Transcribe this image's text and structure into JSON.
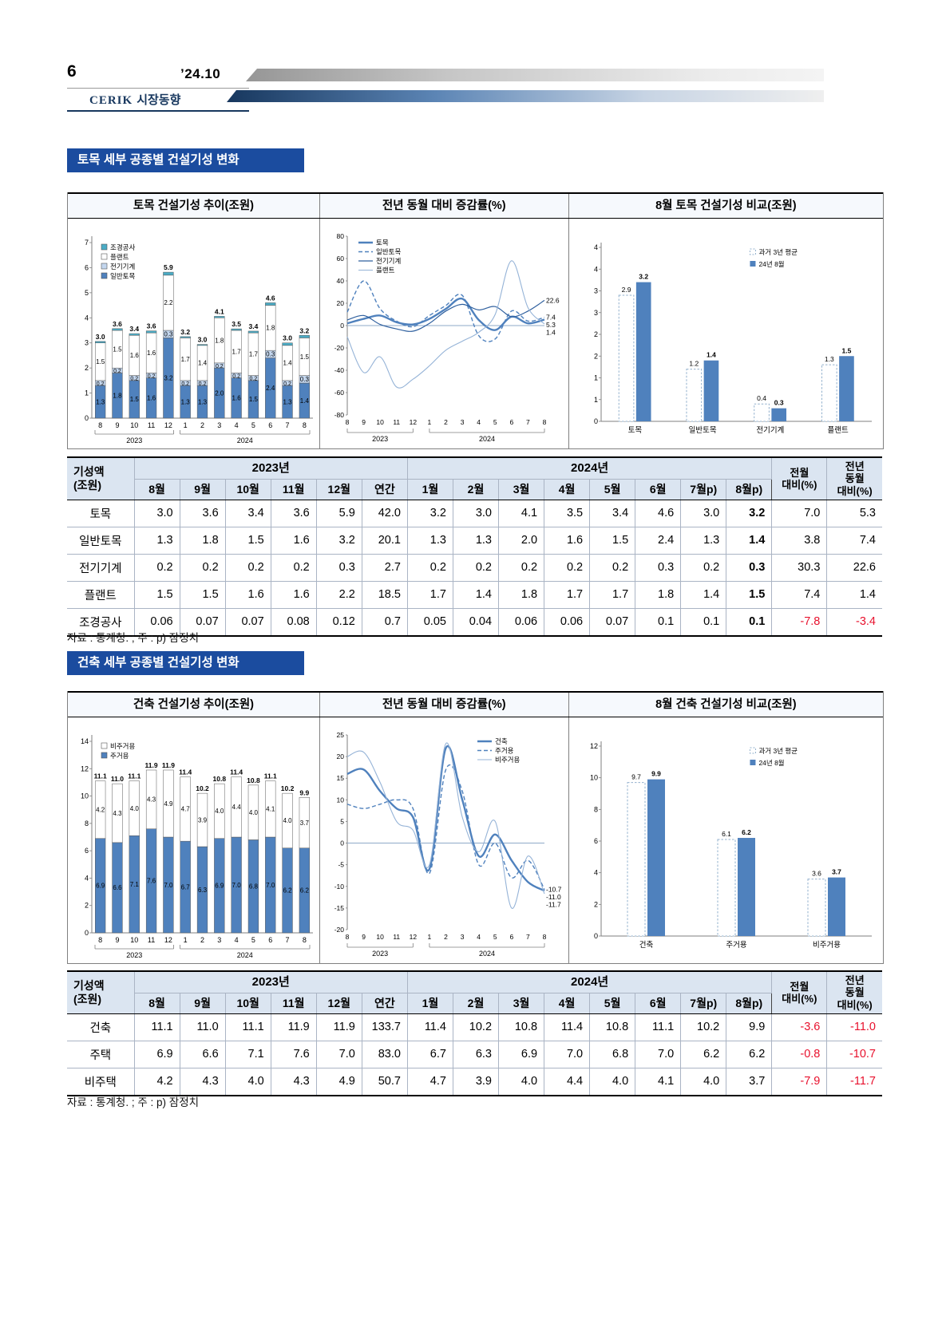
{
  "header": {
    "page_number": "6",
    "issue": "’24.10",
    "brand": "CERIK",
    "brand_label": "시장동향"
  },
  "note": "자료 : 통계청. ; 주 : p) 잠정치",
  "colors": {
    "accent_blue": "#4f81bd",
    "light_blue": "#c3d6ee",
    "teal": "#4bacc6",
    "navy": "#17375e",
    "section_title_bg": "#1b4c9f",
    "table_header_bg": "#dbe5f1",
    "negative_red": "#e8112d"
  },
  "sections": [
    {
      "title": "토목 세부 공종별 건설기성 변화",
      "panel_titles": [
        "토목 건설기성 추이(조원)",
        "전년 동월 대비 증감률(%)",
        "8월 토목 건설기성 비교(조원)"
      ]
    },
    {
      "title": "건축 세부 공종별 건설기성 변화",
      "panel_titles": [
        "건축 건설기성 추이(조원)",
        "전년 동월 대비 증감률(%)",
        "8월 건축 건설기성 비교(조원)"
      ]
    }
  ],
  "tables": [
    {
      "corner_lines": [
        "기성액",
        "(조원)"
      ],
      "year_headers": [
        "2023년",
        "2024년"
      ],
      "months_2023": [
        "8월",
        "9월",
        "10월",
        "11월",
        "12월",
        "연간"
      ],
      "months_2024": [
        "1월",
        "2월",
        "3월",
        "4월",
        "5월",
        "6월",
        "7월p)",
        "8월p)"
      ],
      "mom_lines": [
        "전월",
        "대비(%)"
      ],
      "yoy_lines": [
        "전년",
        "동월",
        "대비(%)"
      ],
      "bold_last_month": true,
      "rows": [
        {
          "label": "토목",
          "sub": false,
          "values": [
            "3.0",
            "3.6",
            "3.4",
            "3.6",
            "5.9",
            "42.0",
            "3.2",
            "3.0",
            "4.1",
            "3.5",
            "3.4",
            "4.6",
            "3.0",
            "3.2"
          ],
          "mom": "7.0",
          "yoy": "5.3"
        },
        {
          "label": "일반토목",
          "sub": true,
          "values": [
            "1.3",
            "1.8",
            "1.5",
            "1.6",
            "3.2",
            "20.1",
            "1.3",
            "1.3",
            "2.0",
            "1.6",
            "1.5",
            "2.4",
            "1.3",
            "1.4"
          ],
          "mom": "3.8",
          "yoy": "7.4"
        },
        {
          "label": "전기기계",
          "sub": true,
          "values": [
            "0.2",
            "0.2",
            "0.2",
            "0.2",
            "0.3",
            "2.7",
            "0.2",
            "0.2",
            "0.2",
            "0.2",
            "0.2",
            "0.3",
            "0.2",
            "0.3"
          ],
          "mom": "30.3",
          "yoy": "22.6"
        },
        {
          "label": "플랜트",
          "sub": true,
          "values": [
            "1.5",
            "1.5",
            "1.6",
            "1.6",
            "2.2",
            "18.5",
            "1.7",
            "1.4",
            "1.8",
            "1.7",
            "1.7",
            "1.8",
            "1.4",
            "1.5"
          ],
          "mom": "7.4",
          "yoy": "1.4"
        },
        {
          "label": "조경공사",
          "sub": true,
          "values": [
            "0.06",
            "0.07",
            "0.07",
            "0.08",
            "0.12",
            "0.7",
            "0.05",
            "0.04",
            "0.06",
            "0.06",
            "0.07",
            "0.1",
            "0.1",
            "0.1"
          ],
          "mom": "-7.8",
          "yoy": "-3.4"
        }
      ]
    },
    {
      "corner_lines": [
        "기성액",
        "(조원)"
      ],
      "year_headers": [
        "2023년",
        "2024년"
      ],
      "months_2023": [
        "8월",
        "9월",
        "10월",
        "11월",
        "12월",
        "연간"
      ],
      "months_2024": [
        "1월",
        "2월",
        "3월",
        "4월",
        "5월",
        "6월",
        "7월p)",
        "8월p)"
      ],
      "mom_lines": [
        "전월",
        "대비(%)"
      ],
      "yoy_lines": [
        "전년",
        "동월",
        "대비(%)"
      ],
      "bold_last_month": false,
      "rows": [
        {
          "label": "건축",
          "sub": false,
          "values": [
            "11.1",
            "11.0",
            "11.1",
            "11.9",
            "11.9",
            "133.7",
            "11.4",
            "10.2",
            "10.8",
            "11.4",
            "10.8",
            "11.1",
            "10.2",
            "9.9"
          ],
          "mom": "-3.6",
          "yoy": "-11.0"
        },
        {
          "label": "주택",
          "sub": true,
          "values": [
            "6.9",
            "6.6",
            "7.1",
            "7.6",
            "7.0",
            "83.0",
            "6.7",
            "6.3",
            "6.9",
            "7.0",
            "6.8",
            "7.0",
            "6.2",
            "6.2"
          ],
          "mom": "-0.8",
          "yoy": "-10.7"
        },
        {
          "label": "비주택",
          "sub": true,
          "values": [
            "4.2",
            "4.3",
            "4.0",
            "4.3",
            "4.9",
            "50.7",
            "4.7",
            "3.9",
            "4.0",
            "4.4",
            "4.0",
            "4.1",
            "4.0",
            "3.7"
          ],
          "mom": "-7.9",
          "yoy": "-11.7"
        }
      ]
    }
  ],
  "chart_data": [
    {
      "id": "civil-trend",
      "type": "bar",
      "subtype": "stacked",
      "title": "토목 건설기성 추이(조원)",
      "categories": [
        "8",
        "9",
        "10",
        "11",
        "12",
        "1",
        "2",
        "3",
        "4",
        "5",
        "6",
        "7",
        "8"
      ],
      "year_groups": [
        {
          "label": "2023",
          "span": 5
        },
        {
          "label": "2024",
          "span": 8
        }
      ],
      "ylim": [
        0,
        7
      ],
      "ytick": 1,
      "series": [
        {
          "name": "일반토목",
          "color": "#4f81bd",
          "labels": true,
          "values": [
            1.3,
            1.8,
            1.5,
            1.6,
            3.2,
            1.3,
            1.3,
            2.0,
            1.6,
            1.5,
            2.4,
            1.3,
            1.4
          ]
        },
        {
          "name": "전기기계",
          "color": "#c3d6ee",
          "labels": true,
          "values": [
            0.2,
            0.2,
            0.2,
            0.2,
            0.3,
            0.2,
            0.2,
            0.2,
            0.2,
            0.2,
            0.3,
            0.2,
            0.3
          ]
        },
        {
          "name": "플랜트",
          "color": "#ffffff",
          "labels": true,
          "values": [
            1.5,
            1.5,
            1.6,
            1.6,
            2.2,
            1.7,
            1.4,
            1.8,
            1.7,
            1.7,
            1.8,
            1.4,
            1.5
          ]
        },
        {
          "name": "조경공사",
          "color": "#4bacc6",
          "labels": false,
          "values": [
            0.06,
            0.07,
            0.07,
            0.08,
            0.12,
            0.05,
            0.04,
            0.06,
            0.06,
            0.07,
            0.1,
            0.1,
            0.1
          ]
        }
      ],
      "totals": [
        3.0,
        3.6,
        3.4,
        3.6,
        5.9,
        3.2,
        3.0,
        4.1,
        3.5,
        3.4,
        4.6,
        3.0,
        3.2
      ],
      "legend": [
        "조경공사",
        "플랜트",
        "전기기계",
        "일반토목"
      ]
    },
    {
      "id": "civil-yoy",
      "type": "line",
      "title": "전년 동월 대비 증감률(%)",
      "x_labels": [
        "8",
        "9",
        "10",
        "11",
        "12",
        "1",
        "2",
        "3",
        "4",
        "5",
        "6",
        "7",
        "8"
      ],
      "year_groups": [
        {
          "label": "2023",
          "span": 5
        },
        {
          "label": "2024",
          "span": 8
        }
      ],
      "ylim": [
        -80,
        80
      ],
      "ytick": 20,
      "legend_pos": "tl",
      "series": [
        {
          "name": "토목",
          "color": "#4f81bd",
          "width": 2.4,
          "end_label": "5.3",
          "values": [
            2,
            6,
            9,
            3,
            1,
            6,
            15,
            24,
            5,
            -4,
            8,
            2,
            5.3
          ]
        },
        {
          "name": "일반토목",
          "color": "#4f81bd",
          "width": 1.4,
          "dash": "5,3",
          "end_label": "7.4",
          "values": [
            12,
            40,
            15,
            4,
            -1,
            9,
            18,
            27,
            -9,
            -12,
            13,
            4,
            7.4
          ]
        },
        {
          "name": "전기기계",
          "color": "#2e5f9e",
          "width": 1.2,
          "end_label": "22.6",
          "values": [
            5,
            9,
            1,
            -3,
            -5,
            2,
            13,
            19,
            14,
            17,
            8,
            13,
            22.6
          ]
        },
        {
          "name": "플랜트",
          "color": "#95b3d7",
          "width": 1.1,
          "end_label": "1.4",
          "values": [
            -10,
            -42,
            -28,
            -55,
            -48,
            -36,
            -22,
            -14,
            -6,
            10,
            58,
            16,
            1.4
          ]
        }
      ]
    },
    {
      "id": "civil-compare",
      "type": "bar",
      "subtype": "grouped",
      "title": "8월 토목 건설기성 비교(조원)",
      "categories": [
        "토목",
        "일반토목",
        "전기기계",
        "플랜트"
      ],
      "ylim": [
        0,
        4
      ],
      "ytick": 0.5,
      "ytick_round": true,
      "series": [
        {
          "name": "과거 3년 평균",
          "style": "dashed",
          "fill": "#ffffff",
          "stroke": "#92b0cd",
          "values": [
            2.9,
            1.2,
            0.4,
            1.3
          ]
        },
        {
          "name": "24년 8월",
          "style": "solid",
          "color": "#4f81bd",
          "values": [
            3.2,
            1.4,
            0.3,
            1.5
          ]
        }
      ]
    },
    {
      "id": "arch-trend",
      "type": "bar",
      "subtype": "stacked",
      "title": "건축 건설기성 추이(조원)",
      "categories": [
        "8",
        "9",
        "10",
        "11",
        "12",
        "1",
        "2",
        "3",
        "4",
        "5",
        "6",
        "7",
        "8"
      ],
      "year_groups": [
        {
          "label": "2023",
          "span": 5
        },
        {
          "label": "2024",
          "span": 8
        }
      ],
      "ylim": [
        0,
        14
      ],
      "ytick": 2,
      "series": [
        {
          "name": "주거용",
          "color": "#4f81bd",
          "labels": true,
          "values": [
            6.9,
            6.6,
            7.1,
            7.6,
            7.0,
            6.7,
            6.3,
            6.9,
            7.0,
            6.8,
            7.0,
            6.2,
            6.2
          ]
        },
        {
          "name": "비주거용",
          "color": "#ffffff",
          "labels": true,
          "values": [
            4.2,
            4.3,
            4.0,
            4.3,
            4.9,
            4.7,
            3.9,
            4.0,
            4.4,
            4.0,
            4.1,
            4.0,
            3.7
          ]
        }
      ],
      "totals": [
        11.1,
        11.0,
        11.1,
        11.9,
        11.9,
        11.4,
        10.2,
        10.8,
        11.4,
        10.8,
        11.1,
        10.2,
        9.9
      ],
      "legend": [
        "비주거용",
        "주거용"
      ]
    },
    {
      "id": "arch-yoy",
      "type": "line",
      "title": "전년 동월 대비 증감률(%)",
      "x_labels": [
        "8",
        "9",
        "10",
        "11",
        "12",
        "1",
        "2",
        "3",
        "4",
        "5",
        "6",
        "7",
        "8"
      ],
      "year_groups": [
        {
          "label": "2023",
          "span": 5
        },
        {
          "label": "2024",
          "span": 8
        }
      ],
      "ylim": [
        -20,
        25
      ],
      "ytick": 5,
      "legend_pos": "tr",
      "series": [
        {
          "name": "건축",
          "color": "#4f81bd",
          "width": 2.4,
          "end_label": "-11.0",
          "values": [
            16,
            17,
            12,
            8,
            6,
            -6,
            22,
            10,
            -3,
            2,
            -4,
            -9,
            -11.0
          ]
        },
        {
          "name": "주거용",
          "color": "#4f81bd",
          "width": 1.4,
          "dash": "5,3",
          "end_label": "-10.7",
          "values": [
            9,
            8,
            9,
            10,
            8,
            -7,
            17,
            12,
            -5,
            0,
            -8,
            -4,
            -10.7
          ]
        },
        {
          "name": "비주거용",
          "color": "#95b3d7",
          "width": 1.1,
          "end_label": "-11.7",
          "values": [
            20,
            21,
            14,
            5,
            3,
            -5,
            23,
            6,
            -2,
            5,
            -15,
            -3,
            -11.7
          ]
        }
      ]
    },
    {
      "id": "arch-compare",
      "type": "bar",
      "subtype": "grouped",
      "title": "8월 건축 건설기성 비교(조원)",
      "categories": [
        "건축",
        "주거용",
        "비주거용"
      ],
      "ylim": [
        0,
        12
      ],
      "ytick": 2,
      "ytick_round": false,
      "series": [
        {
          "name": "과거 3년 평균",
          "style": "dashed",
          "fill": "#ffffff",
          "stroke": "#92b0cd",
          "values": [
            9.7,
            6.1,
            3.6
          ]
        },
        {
          "name": "24년 8월",
          "style": "solid",
          "color": "#4f81bd",
          "values": [
            9.9,
            6.2,
            3.7
          ]
        }
      ]
    }
  ]
}
